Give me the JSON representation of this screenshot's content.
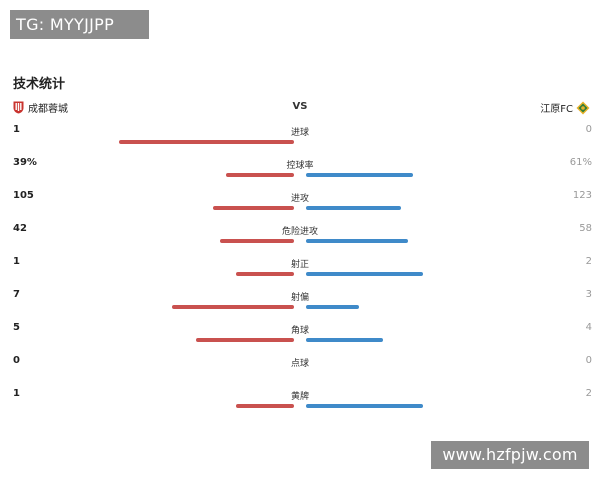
{
  "watermark_top": "TG: MYYJJPP",
  "watermark_bottom": "www.hzfpjw.com",
  "title": "技术统计",
  "home_team": "成都蓉城",
  "away_team": "江原FC",
  "vs": "VS",
  "colors": {
    "home": "#c9514f",
    "away": "#3f8ac9"
  },
  "stats": [
    {
      "label": "进球",
      "home": "1",
      "away": "0",
      "home_share": 1.0,
      "away_share": 0.0
    },
    {
      "label": "控球率",
      "home": "39%",
      "away": "61%",
      "home_share": 0.39,
      "away_share": 0.61
    },
    {
      "label": "进攻",
      "home": "105",
      "away": "123",
      "home_share": 0.46,
      "away_share": 0.54
    },
    {
      "label": "危险进攻",
      "home": "42",
      "away": "58",
      "home_share": 0.42,
      "away_share": 0.58
    },
    {
      "label": "射正",
      "home": "1",
      "away": "2",
      "home_share": 0.33,
      "away_share": 0.67
    },
    {
      "label": "射偏",
      "home": "7",
      "away": "3",
      "home_share": 0.7,
      "away_share": 0.3
    },
    {
      "label": "角球",
      "home": "5",
      "away": "4",
      "home_share": 0.56,
      "away_share": 0.44
    },
    {
      "label": "点球",
      "home": "0",
      "away": "0",
      "home_share": 0.0,
      "away_share": 0.0
    },
    {
      "label": "黄牌",
      "home": "1",
      "away": "2",
      "home_share": 0.33,
      "away_share": 0.67
    }
  ]
}
